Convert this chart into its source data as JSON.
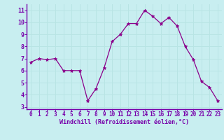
{
  "x": [
    0,
    1,
    2,
    3,
    4,
    5,
    6,
    7,
    8,
    9,
    10,
    11,
    12,
    13,
    14,
    15,
    16,
    17,
    18,
    19,
    20,
    21,
    22,
    23
  ],
  "y": [
    6.7,
    7.0,
    6.9,
    7.0,
    6.0,
    6.0,
    6.0,
    3.5,
    4.5,
    6.2,
    8.4,
    9.0,
    9.9,
    9.9,
    11.0,
    10.5,
    9.9,
    10.4,
    9.7,
    8.0,
    6.9,
    5.1,
    4.6,
    3.5
  ],
  "line_color": "#8b008b",
  "marker": "*",
  "marker_color": "#8b008b",
  "bg_color": "#c8eef0",
  "grid_color": "#aadddd",
  "axis_color": "#7700aa",
  "xlabel": "Windchill (Refroidissement éolien,°C)",
  "ylim": [
    2.8,
    11.5
  ],
  "xlim": [
    -0.5,
    23.5
  ],
  "yticks": [
    3,
    4,
    5,
    6,
    7,
    8,
    9,
    10,
    11
  ],
  "xticks": [
    0,
    1,
    2,
    3,
    4,
    5,
    6,
    7,
    8,
    9,
    10,
    11,
    12,
    13,
    14,
    15,
    16,
    17,
    18,
    19,
    20,
    21,
    22,
    23
  ],
  "spine_color": "#7700aa",
  "tick_font_size": 5.5,
  "xlabel_font_size": 6.0
}
